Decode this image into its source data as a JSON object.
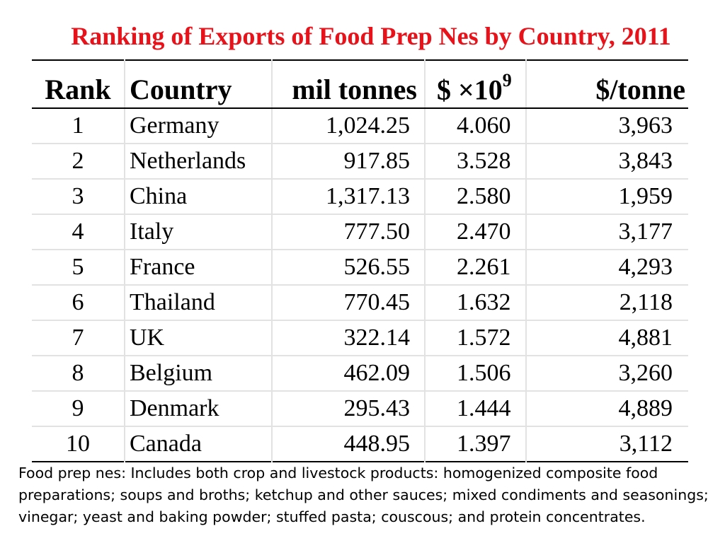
{
  "title": "Ranking of Exports of Food Prep Nes by Country, 2011",
  "colors": {
    "title": "#e8121a",
    "grid": "#e2e2e2",
    "rule": "#000000"
  },
  "table": {
    "headers": {
      "rank": "Rank",
      "country": "Country",
      "tonnes": "mil tonnes",
      "dollars_base": "$ ×10",
      "dollars_exp": "9",
      "per_tonne": "$/tonne"
    },
    "rows": [
      {
        "rank": "1",
        "country": "Germany",
        "tonnes": "1,024.25",
        "dollars": "4.060",
        "per_tonne": "3,963"
      },
      {
        "rank": "2",
        "country": "Netherlands",
        "tonnes": "917.85",
        "dollars": "3.528",
        "per_tonne": "3,843"
      },
      {
        "rank": "3",
        "country": "China",
        "tonnes": "1,317.13",
        "dollars": "2.580",
        "per_tonne": "1,959"
      },
      {
        "rank": "4",
        "country": "Italy",
        "tonnes": "777.50",
        "dollars": "2.470",
        "per_tonne": "3,177"
      },
      {
        "rank": "5",
        "country": "France",
        "tonnes": "526.55",
        "dollars": "2.261",
        "per_tonne": "4,293"
      },
      {
        "rank": "6",
        "country": "Thailand",
        "tonnes": "770.45",
        "dollars": "1.632",
        "per_tonne": "2,118"
      },
      {
        "rank": "7",
        "country": "UK",
        "tonnes": "322.14",
        "dollars": "1.572",
        "per_tonne": "4,881"
      },
      {
        "rank": "8",
        "country": "Belgium",
        "tonnes": "462.09",
        "dollars": "1.506",
        "per_tonne": "3,260"
      },
      {
        "rank": "9",
        "country": "Denmark",
        "tonnes": "295.43",
        "dollars": "1.444",
        "per_tonne": "4,889"
      },
      {
        "rank": "10",
        "country": "Canada",
        "tonnes": "448.95",
        "dollars": "1.397",
        "per_tonne": "3,112"
      }
    ]
  },
  "footnote": "Food prep nes: Includes both crop and livestock products: homogenized composite food preparations; soups and broths; ketchup and other sauces; mixed condiments and seasonings; vinegar; yeast and baking powder; stuffed pasta; couscous; and protein concentrates."
}
